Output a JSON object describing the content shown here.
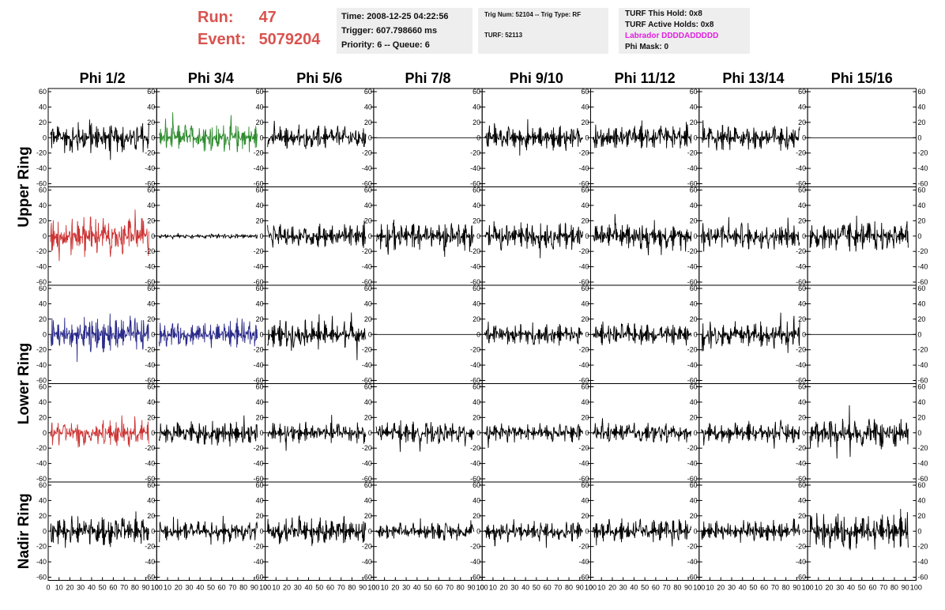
{
  "header": {
    "run_label": "Run:",
    "run_value": "47",
    "event_label": "Event:",
    "event_value": "5079204"
  },
  "time_box": {
    "time": "Time: 2008-12-25 04:22:56",
    "trigger": "Trigger: 607.798660 ms",
    "priority": "Priority: 6 -- Queue: 6"
  },
  "trig_box": {
    "trig": "Trig Num: 52104 -- Trig Type: RF",
    "turf": "TURF: 52113"
  },
  "turf_box": {
    "this_hold": "TURF This Hold: 0x8",
    "active_holds": "TURF Active Holds: 0x8",
    "labrador": "Labrador DDDDADDDDD",
    "phi_mask": "Phi Mask: 0"
  },
  "columns": [
    "Phi 1/2",
    "Phi 3/4",
    "Phi 5/6",
    "Phi 7/8",
    "Phi 9/10",
    "Phi 11/12",
    "Phi 13/14",
    "Phi 15/16"
  ],
  "ring_labels": [
    {
      "label": "Upper Ring"
    },
    {
      "label": "Lower Ring"
    },
    {
      "label": "Nadir Ring"
    }
  ],
  "colors": {
    "default_trace": "#000000",
    "green_trace": "#2e8b2e",
    "red_trace": "#cc3333",
    "blue_trace": "#2a2a8a",
    "header_red": "#d9534f",
    "magenta": "#e020e0",
    "info_bg": "#eeeeee"
  },
  "chart_data": {
    "type": "line",
    "ylim": [
      -60,
      60
    ],
    "xlim": [
      0,
      100
    ],
    "yticks": [
      "60",
      "40",
      "20",
      "0",
      "-20",
      "-40",
      "-60"
    ],
    "xticks": [
      "0",
      "10",
      "20",
      "30",
      "40",
      "50",
      "60",
      "70",
      "80",
      "90",
      "100"
    ],
    "grid": false,
    "note_rows": 5,
    "panels": [
      {
        "row": 0,
        "col": 0,
        "amplitude": 22,
        "color": "default_trace",
        "flat": false
      },
      {
        "row": 0,
        "col": 1,
        "amplitude": 20,
        "color": "green_trace",
        "flat": false
      },
      {
        "row": 0,
        "col": 2,
        "amplitude": 16,
        "color": "default_trace",
        "flat": false
      },
      {
        "row": 0,
        "col": 3,
        "amplitude": 0,
        "color": "default_trace",
        "flat": true
      },
      {
        "row": 0,
        "col": 4,
        "amplitude": 18,
        "color": "default_trace",
        "flat": false
      },
      {
        "row": 0,
        "col": 5,
        "amplitude": 17,
        "color": "default_trace",
        "flat": false
      },
      {
        "row": 0,
        "col": 6,
        "amplitude": 18,
        "color": "default_trace",
        "flat": false
      },
      {
        "row": 0,
        "col": 7,
        "amplitude": 0,
        "color": "default_trace",
        "flat": true
      },
      {
        "row": 1,
        "col": 0,
        "amplitude": 28,
        "color": "red_trace",
        "flat": false
      },
      {
        "row": 1,
        "col": 1,
        "amplitude": 3,
        "color": "default_trace",
        "flat": false
      },
      {
        "row": 1,
        "col": 2,
        "amplitude": 17,
        "color": "default_trace",
        "flat": false
      },
      {
        "row": 1,
        "col": 3,
        "amplitude": 20,
        "color": "default_trace",
        "flat": false
      },
      {
        "row": 1,
        "col": 4,
        "amplitude": 19,
        "color": "default_trace",
        "flat": false
      },
      {
        "row": 1,
        "col": 5,
        "amplitude": 18,
        "color": "default_trace",
        "flat": false
      },
      {
        "row": 1,
        "col": 6,
        "amplitude": 18,
        "color": "default_trace",
        "flat": false
      },
      {
        "row": 1,
        "col": 7,
        "amplitude": 21,
        "color": "default_trace",
        "flat": false
      },
      {
        "row": 2,
        "col": 0,
        "amplitude": 25,
        "color": "blue_trace",
        "flat": false
      },
      {
        "row": 2,
        "col": 1,
        "amplitude": 18,
        "color": "blue_trace",
        "flat": false
      },
      {
        "row": 2,
        "col": 2,
        "amplitude": 20,
        "color": "default_trace",
        "flat": false
      },
      {
        "row": 2,
        "col": 3,
        "amplitude": 0,
        "color": "default_trace",
        "flat": true
      },
      {
        "row": 2,
        "col": 4,
        "amplitude": 15,
        "color": "default_trace",
        "flat": false
      },
      {
        "row": 2,
        "col": 5,
        "amplitude": 15,
        "color": "default_trace",
        "flat": false
      },
      {
        "row": 2,
        "col": 6,
        "amplitude": 18,
        "color": "default_trace",
        "flat": false
      },
      {
        "row": 2,
        "col": 7,
        "amplitude": 0,
        "color": "default_trace",
        "flat": true
      },
      {
        "row": 3,
        "col": 0,
        "amplitude": 18,
        "color": "red_trace",
        "flat": false
      },
      {
        "row": 3,
        "col": 1,
        "amplitude": 17,
        "color": "default_trace",
        "flat": false
      },
      {
        "row": 3,
        "col": 2,
        "amplitude": 15,
        "color": "default_trace",
        "flat": false
      },
      {
        "row": 3,
        "col": 3,
        "amplitude": 15,
        "color": "default_trace",
        "flat": false
      },
      {
        "row": 3,
        "col": 4,
        "amplitude": 13,
        "color": "default_trace",
        "flat": false
      },
      {
        "row": 3,
        "col": 5,
        "amplitude": 14,
        "color": "default_trace",
        "flat": false
      },
      {
        "row": 3,
        "col": 6,
        "amplitude": 14,
        "color": "default_trace",
        "flat": false
      },
      {
        "row": 3,
        "col": 7,
        "amplitude": 22,
        "color": "default_trace",
        "flat": false
      },
      {
        "row": 4,
        "col": 0,
        "amplitude": 22,
        "color": "default_trace",
        "flat": false
      },
      {
        "row": 4,
        "col": 1,
        "amplitude": 14,
        "color": "default_trace",
        "flat": false
      },
      {
        "row": 4,
        "col": 2,
        "amplitude": 20,
        "color": "default_trace",
        "flat": false
      },
      {
        "row": 4,
        "col": 3,
        "amplitude": 12,
        "color": "default_trace",
        "flat": false
      },
      {
        "row": 4,
        "col": 4,
        "amplitude": 15,
        "color": "default_trace",
        "flat": false
      },
      {
        "row": 4,
        "col": 5,
        "amplitude": 17,
        "color": "default_trace",
        "flat": false
      },
      {
        "row": 4,
        "col": 6,
        "amplitude": 15,
        "color": "default_trace",
        "flat": false
      },
      {
        "row": 4,
        "col": 7,
        "amplitude": 25,
        "color": "default_trace",
        "flat": false
      }
    ]
  }
}
